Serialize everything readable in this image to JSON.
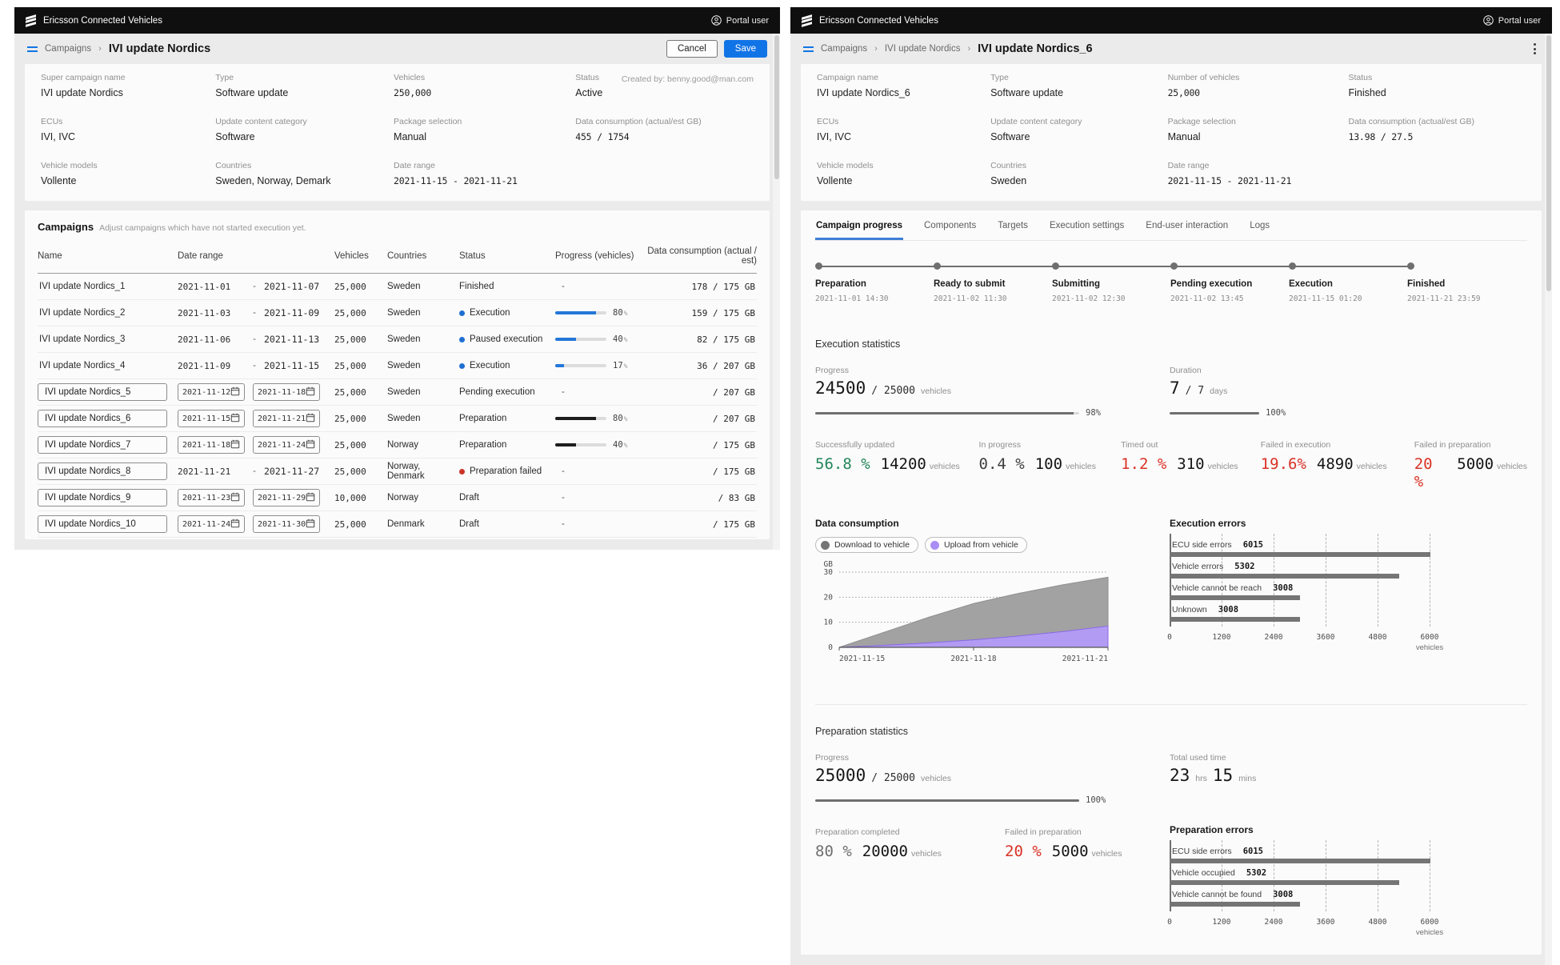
{
  "brand": {
    "app_title": "Ericsson Connected Vehicles",
    "user_label": "Portal user"
  },
  "colors": {
    "accent_blue": "#1174e6",
    "status_blue": "#1f6fd2",
    "status_red": "#cc3328",
    "green": "#23855a",
    "red": "#d93226",
    "bar_gray": "#757575",
    "purple": "#a98df5"
  },
  "left_panel": {
    "breadcrumb": {
      "section": "Campaigns",
      "current": "IVI update Nordics"
    },
    "actions": {
      "cancel": "Cancel",
      "save": "Save"
    },
    "summary": {
      "created_by": "Created by: benny.good@man.com",
      "fields": [
        {
          "label": "Super campaign name",
          "value": "IVI update Nordics"
        },
        {
          "label": "Type",
          "value": "Software update"
        },
        {
          "label": "Vehicles",
          "value": "250,000",
          "mono": true
        },
        {
          "label": "Status",
          "value": "Active"
        },
        {
          "label": "ECUs",
          "value": "IVI, IVC"
        },
        {
          "label": "Update content category",
          "value": "Software"
        },
        {
          "label": "Package selection",
          "value": "Manual"
        },
        {
          "label": "Data consumption (actual/est GB)",
          "value": "455 / 1754",
          "mono": true
        },
        {
          "label": "Vehicle models",
          "value": "Vollente"
        },
        {
          "label": "Countries",
          "value": "Sweden, Norway, Demark"
        },
        {
          "label": "Date range",
          "value": "2021-11-15 - 2021-11-21",
          "mono": true
        }
      ]
    },
    "campaigns_table": {
      "title": "Campaigns",
      "subtitle": "Adjust campaigns which have not started execution yet.",
      "columns": [
        "Name",
        "Date range",
        "Vehicles",
        "Countries",
        "Status",
        "Progress (vehicles)",
        "Data consumption (actual / est)"
      ],
      "rows": [
        {
          "name": "IVI update Nordics_1",
          "name_input": false,
          "start": "2021-11-01",
          "end": "2021-11-07",
          "dates_input": false,
          "vehicles": "25,000",
          "countries": "Sweden",
          "status": "Finished",
          "dot": null,
          "pct": null,
          "bar": null,
          "data": "178 / 175 GB"
        },
        {
          "name": "IVI update Nordics_2",
          "name_input": false,
          "start": "2021-11-03",
          "end": "2021-11-09",
          "dates_input": false,
          "vehicles": "25,000",
          "countries": "Sweden",
          "status": "Execution",
          "dot": "blue",
          "pct": 80,
          "bar": "blue",
          "data": "159 / 175 GB"
        },
        {
          "name": "IVI update Nordics_3",
          "name_input": false,
          "start": "2021-11-06",
          "end": "2021-11-13",
          "dates_input": false,
          "vehicles": "25,000",
          "countries": "Sweden",
          "status": "Paused execution",
          "dot": "blue",
          "pct": 40,
          "bar": "blue",
          "data": "82 / 175 GB"
        },
        {
          "name": "IVI update Nordics_4",
          "name_input": false,
          "start": "2021-11-09",
          "end": "2021-11-15",
          "dates_input": false,
          "vehicles": "25,000",
          "countries": "Sweden",
          "status": "Execution",
          "dot": "blue",
          "pct": 17,
          "bar": "blue",
          "data": "36 / 207 GB"
        },
        {
          "name": "IVI update Nordics_5",
          "name_input": true,
          "start": "2021-11-12",
          "end": "2021-11-18",
          "dates_input": true,
          "vehicles": "25,000",
          "countries": "Sweden",
          "status": "Pending execution",
          "dot": null,
          "pct": null,
          "bar": null,
          "data": "/ 207 GB"
        },
        {
          "name": "IVI update Nordics_6",
          "name_input": true,
          "start": "2021-11-15",
          "end": "2021-11-21",
          "dates_input": true,
          "vehicles": "25,000",
          "countries": "Sweden",
          "status": "Preparation",
          "dot": null,
          "pct": 80,
          "bar": "black",
          "data": "/ 207 GB"
        },
        {
          "name": "IVI update Nordics_7",
          "name_input": true,
          "start": "2021-11-18",
          "end": "2021-11-24",
          "dates_input": true,
          "vehicles": "25,000",
          "countries": "Norway",
          "status": "Preparation",
          "dot": null,
          "pct": 40,
          "bar": "black",
          "data": "/ 175 GB"
        },
        {
          "name": "IVI update Nordics_8",
          "name_input": true,
          "start": "2021-11-21",
          "end": "2021-11-27",
          "dates_input": false,
          "vehicles": "25,000",
          "countries": "Norway, Denmark",
          "status": "Preparation failed",
          "dot": "red",
          "pct": null,
          "bar": null,
          "data": "/ 175 GB"
        },
        {
          "name": "IVI update Nordics_9",
          "name_input": true,
          "start": "2021-11-23",
          "end": "2021-11-29",
          "dates_input": true,
          "vehicles": "10,000",
          "countries": "Norway",
          "status": "Draft",
          "dot": null,
          "pct": null,
          "bar": null,
          "data": "/ 83 GB"
        },
        {
          "name": "IVI update Nordics_10",
          "name_input": true,
          "start": "2021-11-24",
          "end": "2021-11-30",
          "dates_input": true,
          "vehicles": "25,000",
          "countries": "Denmark",
          "status": "Draft",
          "dot": null,
          "pct": null,
          "bar": null,
          "data": "/ 175 GB"
        }
      ]
    }
  },
  "right_panel": {
    "breadcrumb": {
      "section": "Campaigns",
      "parent": "IVI update Nordics",
      "current": "IVI update Nordics_6"
    },
    "summary": {
      "fields": [
        {
          "label": "Campaign name",
          "value": "IVI update Nordics_6"
        },
        {
          "label": "Type",
          "value": "Software update"
        },
        {
          "label": "Number of vehicles",
          "value": "25,000",
          "mono": true
        },
        {
          "label": "Status",
          "value": "Finished"
        },
        {
          "label": "ECUs",
          "value": "IVI, IVC"
        },
        {
          "label": "Update content category",
          "value": "Software"
        },
        {
          "label": "Package selection",
          "value": "Manual"
        },
        {
          "label": "Data consumption (actual/est GB)",
          "value": "13.98 / 27.5",
          "mono": true
        },
        {
          "label": "Vehicle models",
          "value": "Vollente"
        },
        {
          "label": "Countries",
          "value": "Sweden"
        },
        {
          "label": "Date range",
          "value": "2021-11-15 - 2021-11-21",
          "mono": true
        }
      ]
    },
    "tabs": [
      {
        "label": "Campaign progress",
        "active": true
      },
      {
        "label": "Components",
        "active": false
      },
      {
        "label": "Targets",
        "active": false
      },
      {
        "label": "Execution settings",
        "active": false
      },
      {
        "label": "End-user interaction",
        "active": false
      },
      {
        "label": "Logs",
        "active": false
      }
    ],
    "stepper": [
      {
        "label": "Preparation",
        "time": "2021-11-01 14:30"
      },
      {
        "label": "Ready to submit",
        "time": "2021-11-02 11:30"
      },
      {
        "label": "Submitting",
        "time": "2021-11-02 12:30"
      },
      {
        "label": "Pending execution",
        "time": "2021-11-02 13:45"
      },
      {
        "label": "Execution",
        "time": "2021-11-15 01:20"
      },
      {
        "label": "Finished",
        "time": "2021-11-21 23:59"
      }
    ],
    "execution": {
      "heading": "Execution statistics",
      "progress": {
        "label": "Progress",
        "value": "24500",
        "total": "/ 25000",
        "unit": "vehicles",
        "pct": 98,
        "pct_label": "98%"
      },
      "duration": {
        "label": "Duration",
        "value": "7",
        "total": "/ 7",
        "unit": "days",
        "pct": 100,
        "pct_label": "100%"
      },
      "tiles": [
        {
          "label": "Successfully updated",
          "pct": "56.8 %",
          "count": "14200",
          "unit": "vehicles",
          "color": "green"
        },
        {
          "label": "In progress",
          "pct": "0.4 %",
          "count": "100",
          "unit": "vehicles",
          "color": "dark"
        },
        {
          "label": "Timed out",
          "pct": "1.2 %",
          "count": "310",
          "unit": "vehicles",
          "color": "red"
        },
        {
          "label": "Failed in execution",
          "pct": "19.6%",
          "count": "4890",
          "unit": "vehicles",
          "color": "red"
        },
        {
          "label": "Failed in preparation",
          "pct": "20 %",
          "count": "5000",
          "unit": "vehicles",
          "color": "red"
        }
      ]
    },
    "preparation": {
      "heading": "Preparation statistics",
      "progress": {
        "label": "Progress",
        "value": "25000",
        "total": "/ 25000",
        "unit": "vehicles",
        "pct": 100,
        "pct_label": "100%"
      },
      "used_time": {
        "label": "Total used time",
        "value1": "23",
        "unit1": "hrs",
        "value2": "15",
        "unit2": "mins"
      },
      "tiles": [
        {
          "label": "Preparation completed",
          "pct": "80 %",
          "count": "20000",
          "unit": "vehicles",
          "color": "gray"
        },
        {
          "label": "Failed in preparation",
          "pct": "20 %",
          "count": "5000",
          "unit": "vehicles",
          "color": "red"
        }
      ]
    }
  },
  "chart_data": [
    {
      "id": "data-consumption",
      "type": "area",
      "title": "Data consumption",
      "ylabel": "GB",
      "ylim": [
        0,
        30
      ],
      "yticks": [
        0,
        10,
        20,
        30
      ],
      "x_labels": [
        "2021-11-15",
        "2021-11-18",
        "2021-11-21"
      ],
      "grid": "dotted-horizontal",
      "legend_position": "top",
      "series": [
        {
          "name": "Download to vehicle",
          "color": "#8f8f8f",
          "fill": "#a2a2a2",
          "values": [
            0,
            6,
            12,
            17.5,
            21.5,
            25,
            28
          ]
        },
        {
          "name": "Upload from vehicle",
          "color": "#8868e8",
          "fill": "#b29bf2",
          "values": [
            0,
            0.8,
            1.8,
            3,
            4.5,
            6.3,
            8.5
          ]
        }
      ]
    },
    {
      "id": "execution-errors",
      "type": "bar",
      "orientation": "horizontal",
      "title": "Execution errors",
      "categories": [
        "ECU side errors",
        "Vehicle errors",
        "Vehicle cannot be reach",
        "Unknown"
      ],
      "values": [
        6015,
        5302,
        3008,
        3008
      ],
      "xlabel": "vehicles",
      "xticks": [
        0,
        1200,
        2400,
        3600,
        4800,
        6000
      ],
      "xlim": [
        0,
        6300
      ],
      "bar_color": "#757575",
      "grid": "dashed-vertical"
    },
    {
      "id": "preparation-errors",
      "type": "bar",
      "orientation": "horizontal",
      "title": "Preparation errors",
      "categories": [
        "ECU side errors",
        "Vehicle occupied",
        "Vehicle cannot be found"
      ],
      "values": [
        6015,
        5302,
        3008
      ],
      "xlabel": "vehicles",
      "xticks": [
        0,
        1200,
        2400,
        3600,
        4800,
        6000
      ],
      "xlim": [
        0,
        6300
      ],
      "bar_color": "#757575",
      "grid": "dashed-vertical"
    }
  ]
}
